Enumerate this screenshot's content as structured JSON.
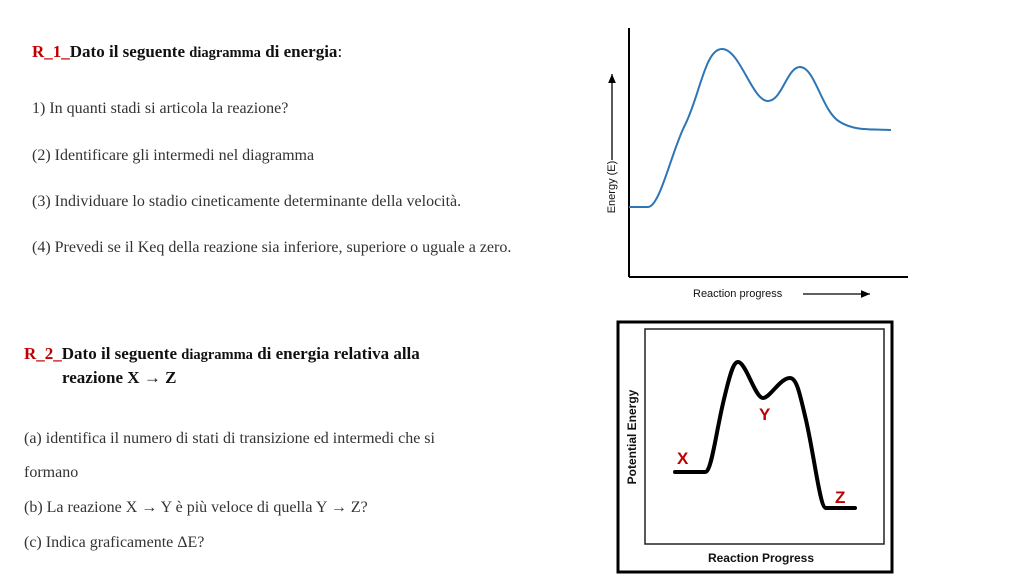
{
  "r1": {
    "code": "R_1_",
    "title_a": "Dato il seguente ",
    "title_b": "diagramma",
    "title_c": " di energia",
    "title_d": ":",
    "questions": [
      "1) In quanti stadi si articola la reazione?",
      "(2) Identificare gli intermedi nel diagramma",
      "(3) Individuare lo stadio cineticamente determinante della  velocità.",
      "(4) Prevedi se il Keq della reazione sia inferiore, superiore o uguale a zero."
    ],
    "diagram": {
      "y_label": "Energy (E)",
      "x_label": "Reaction progress",
      "curve_color": "#2e75b6"
    }
  },
  "r2": {
    "code": "R_2_",
    "title_a": "Dato il seguente ",
    "title_b": "diagramma",
    "title_c": " di energia relativa alla",
    "title_line2": "reazione X → Z",
    "questions": [
      "(a) identifica il numero di stati di transizione ed intermedi che si",
      "formano",
      "(b) La reazione  X → Y è più veloce di quella Y → Z?",
      "(c) Indica graficamente ΔE?"
    ],
    "diagram": {
      "y_label": "Potential Energy",
      "x_label": "Reaction Progress",
      "labels": [
        "X",
        "Y",
        "Z"
      ],
      "label_color": "#c00000"
    }
  }
}
